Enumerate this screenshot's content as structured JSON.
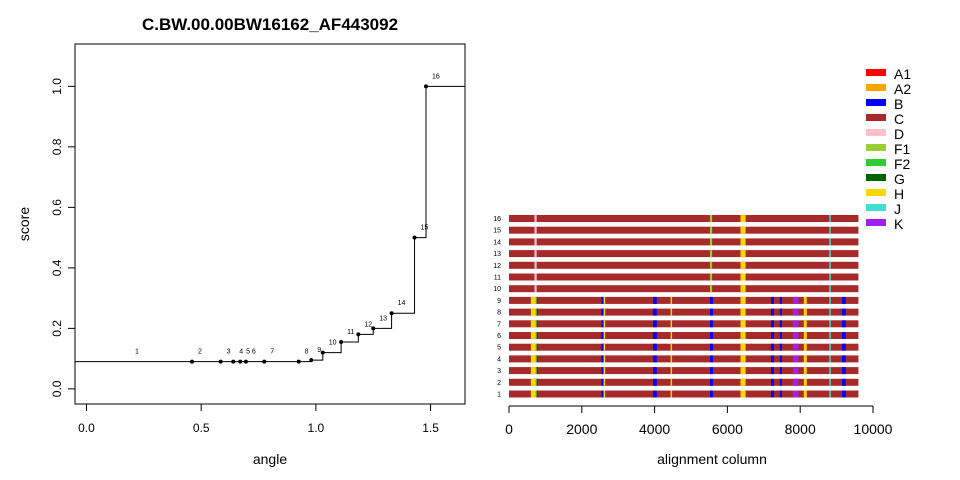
{
  "chart_data": [
    {
      "type": "line",
      "style": "step",
      "title": "C.BW.00.00BW16162_AF443092",
      "xlabel": "angle",
      "ylabel": "score",
      "xlim": [
        -0.05,
        1.65
      ],
      "ylim": [
        -0.05,
        1.14
      ],
      "xticks": [
        "0.0",
        "0.5",
        "1.0",
        "1.5"
      ],
      "yticks": [
        "0.0",
        "0.2",
        "0.4",
        "0.6",
        "0.8",
        "1.0"
      ],
      "points": [
        {
          "label": "1",
          "x": 0.0,
          "y": 0.09
        },
        {
          "label": "2",
          "x": 0.46,
          "y": 0.09
        },
        {
          "label": "3",
          "x": 0.585,
          "y": 0.09
        },
        {
          "label": "4",
          "x": 0.64,
          "y": 0.09
        },
        {
          "label": "5",
          "x": 0.67,
          "y": 0.09
        },
        {
          "label": "6",
          "x": 0.695,
          "y": 0.09
        },
        {
          "label": "7",
          "x": 0.775,
          "y": 0.09
        },
        {
          "label": "8",
          "x": 0.925,
          "y": 0.09
        },
        {
          "label": "9",
          "x": 0.98,
          "y": 0.095
        },
        {
          "label": "10",
          "x": 1.03,
          "y": 0.12
        },
        {
          "label": "11",
          "x": 1.11,
          "y": 0.155
        },
        {
          "label": "12",
          "x": 1.185,
          "y": 0.18
        },
        {
          "label": "13",
          "x": 1.25,
          "y": 0.2
        },
        {
          "label": "14",
          "x": 1.33,
          "y": 0.25
        },
        {
          "label": "15",
          "x": 1.43,
          "y": 0.5
        },
        {
          "label": "16",
          "x": 1.48,
          "y": 1.0
        }
      ]
    },
    {
      "type": "heatmap",
      "xlabel": "alignment column",
      "xlim": [
        0,
        10000
      ],
      "xticks": [
        "0",
        "2000",
        "4000",
        "6000",
        "8000",
        "10000"
      ],
      "rows": [
        "1",
        "2",
        "3",
        "4",
        "5",
        "6",
        "7",
        "8",
        "9",
        "10",
        "11",
        "12",
        "13",
        "14",
        "15",
        "16"
      ],
      "length": 9600,
      "base": "C",
      "legend": [
        {
          "label": "A1",
          "color": "#ff0000"
        },
        {
          "label": "A2",
          "color": "#ffa500"
        },
        {
          "label": "B",
          "color": "#0000ff"
        },
        {
          "label": "C",
          "color": "#a52a2a"
        },
        {
          "label": "D",
          "color": "#ffc0cb"
        },
        {
          "label": "F1",
          "color": "#9acd32"
        },
        {
          "label": "F2",
          "color": "#32cd32"
        },
        {
          "label": "G",
          "color": "#006400"
        },
        {
          "label": "H",
          "color": "#ffd700"
        },
        {
          "label": "J",
          "color": "#40e0d0"
        },
        {
          "label": "K",
          "color": "#a020f0"
        }
      ],
      "columns_all_rows": [
        {
          "start": 700,
          "end": 760,
          "subtype": "D"
        },
        {
          "start": 5520,
          "end": 5580,
          "subtype": "F1"
        },
        {
          "start": 6360,
          "end": 6500,
          "subtype": "H"
        },
        {
          "start": 8800,
          "end": 8840,
          "subtype": "J"
        }
      ],
      "segments_lower_rows": [
        {
          "start": 600,
          "end": 720,
          "subtype": "H"
        },
        {
          "start": 720,
          "end": 760,
          "subtype": "F1"
        },
        {
          "start": 760,
          "end": 800,
          "subtype": "G"
        },
        {
          "start": 2540,
          "end": 2600,
          "subtype": "B"
        },
        {
          "start": 2600,
          "end": 2640,
          "subtype": "H"
        },
        {
          "start": 3960,
          "end": 4060,
          "subtype": "B"
        },
        {
          "start": 4440,
          "end": 4480,
          "subtype": "H"
        },
        {
          "start": 5520,
          "end": 5600,
          "subtype": "B"
        },
        {
          "start": 7200,
          "end": 7280,
          "subtype": "B"
        },
        {
          "start": 7440,
          "end": 7500,
          "subtype": "B"
        },
        {
          "start": 7800,
          "end": 7950,
          "subtype": "K"
        },
        {
          "start": 8100,
          "end": 8180,
          "subtype": "H"
        },
        {
          "start": 9150,
          "end": 9250,
          "subtype": "B"
        }
      ]
    }
  ]
}
